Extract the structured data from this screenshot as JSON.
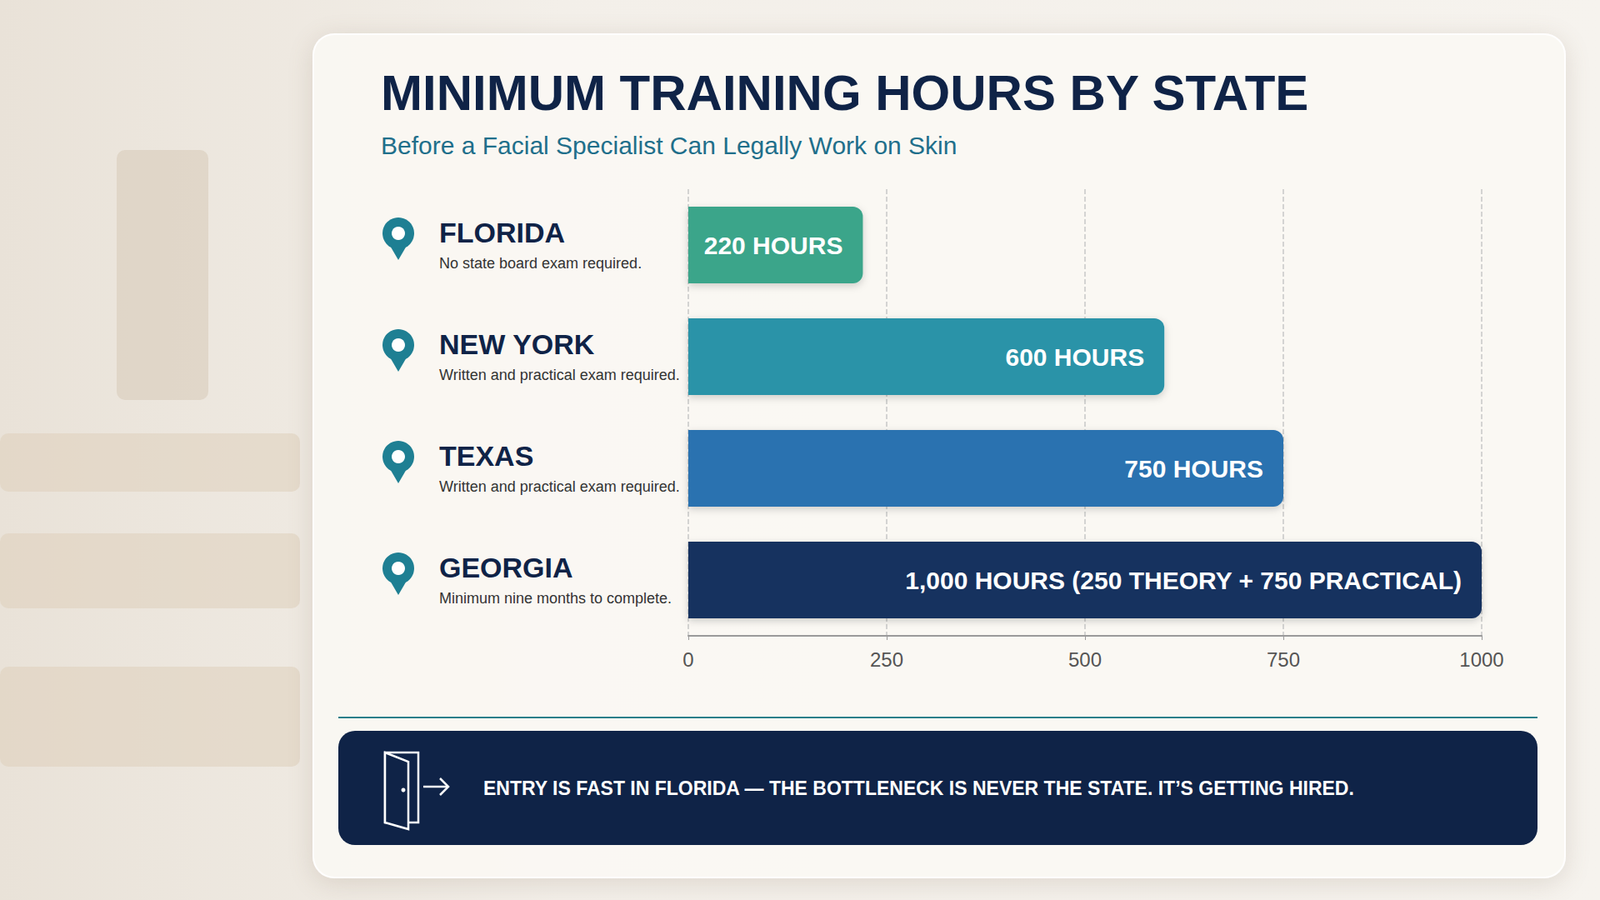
{
  "chart_data": {
    "type": "bar",
    "orientation": "horizontal",
    "title": "MINIMUM TRAINING HOURS BY STATE",
    "subtitle": "Before a Facial Specialist Can Legally Work on Skin",
    "categories": [
      "FLORIDA",
      "NEW YORK",
      "TEXAS",
      "GEORGIA"
    ],
    "category_notes": [
      "No state board exam required.",
      "Written and practical exam required.",
      "Written and practical exam required.",
      "Minimum nine months to complete."
    ],
    "values": [
      220,
      600,
      750,
      1000
    ],
    "value_labels": [
      "220 HOURS",
      "600 HOURS",
      "750 HOURS",
      "1,000 HOURS (250 THEORY + 750 PRACTICAL)"
    ],
    "colors": [
      "#3aa58a",
      "#2a93a8",
      "#2a72b0",
      "#14305e"
    ],
    "xlim": [
      0,
      1000
    ],
    "xticks": [
      0,
      250,
      500,
      750,
      1000
    ],
    "grid": true,
    "data_labels": true,
    "annotation": "ENTRY IS FAST IN FLORIDA — THE BOTTLENECK IS NEVER THE STATE. IT’S GETTING HIRED."
  }
}
